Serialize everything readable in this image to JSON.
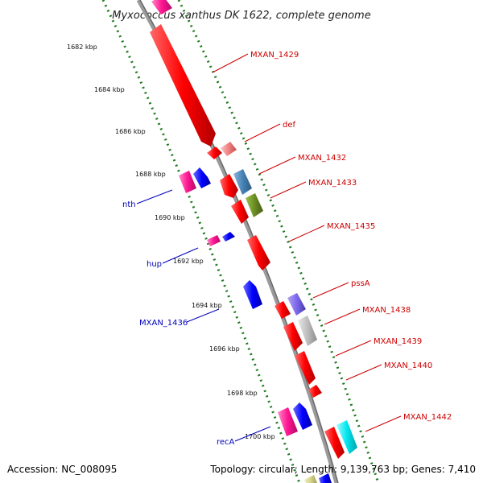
{
  "title": "Myxococcus xanthus DK 1622, complete genome",
  "footer": {
    "accession": "Accession: NC_008095",
    "summary": "Topology: circular; Length: 9,139,763 bp; Genes: 7,410"
  },
  "colors": {
    "backbone": "#8a8a8a",
    "tick": "#1e7a1e",
    "forward_label": "#cc0000",
    "reverse_label": "#0000bb"
  },
  "ticks": [
    {
      "label": "1682 kbp"
    },
    {
      "label": "1684 kbp"
    },
    {
      "label": "1686 kbp"
    },
    {
      "label": "1688 kbp"
    },
    {
      "label": "1690 kbp"
    },
    {
      "label": "1692 kbp"
    },
    {
      "label": "1694 kbp"
    },
    {
      "label": "1696 kbp"
    },
    {
      "label": "1698 kbp"
    },
    {
      "label": "1700 kbp"
    }
  ],
  "features": [
    {
      "name": "MXAN_1429",
      "strand": "forward",
      "color": "#ff0000"
    },
    {
      "name": "def",
      "strand": "forward",
      "color": "#ff0000"
    },
    {
      "name": "MXAN_1432",
      "strand": "forward",
      "color": "#ff0000"
    },
    {
      "name": "MXAN_1433",
      "strand": "forward",
      "color": "#ff0000"
    },
    {
      "name": "MXAN_1435",
      "strand": "forward",
      "color": "#ff0000"
    },
    {
      "name": "pssA",
      "strand": "forward",
      "color": "#ff0000"
    },
    {
      "name": "MXAN_1438",
      "strand": "forward",
      "color": "#ff0000"
    },
    {
      "name": "MXAN_1439",
      "strand": "forward",
      "color": "#ff0000"
    },
    {
      "name": "MXAN_1440",
      "strand": "forward",
      "color": "#ff0000"
    },
    {
      "name": "MXAN_1442",
      "strand": "forward",
      "color": "#ff0000"
    },
    {
      "name": "nth",
      "strand": "reverse",
      "color": "#0000ff"
    },
    {
      "name": "hup",
      "strand": "reverse",
      "color": "#0000ff"
    },
    {
      "name": "MXAN_1436",
      "strand": "reverse",
      "color": "#0000ff"
    },
    {
      "name": "recA",
      "strand": "reverse",
      "color": "#0000ff"
    }
  ],
  "cog_colors": [
    "#ff3399",
    "#4682b4",
    "#6b8e23",
    "#9370db",
    "#c0c0c0",
    "#00e5ee",
    "#f08080",
    "#d4d48a"
  ]
}
